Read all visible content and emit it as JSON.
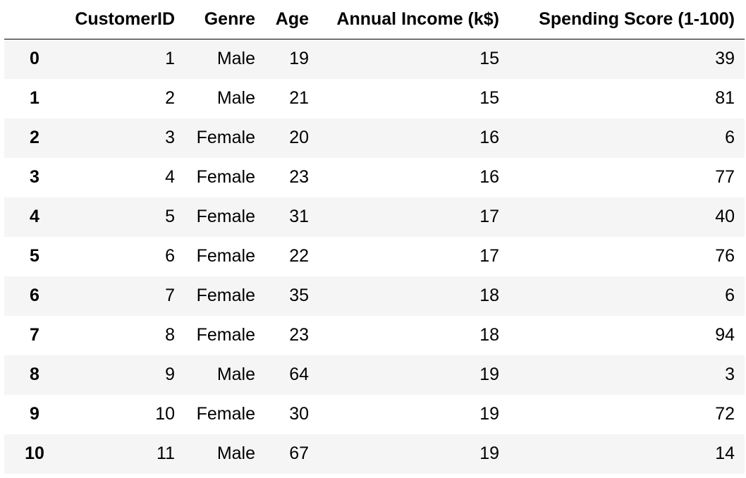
{
  "table": {
    "columns": [
      "",
      "CustomerID",
      "Genre",
      "Age",
      "Annual Income (k$)",
      "Spending Score (1-100)"
    ],
    "rows": [
      {
        "index": "0",
        "cells": [
          "1",
          "Male",
          "19",
          "15",
          "39"
        ]
      },
      {
        "index": "1",
        "cells": [
          "2",
          "Male",
          "21",
          "15",
          "81"
        ]
      },
      {
        "index": "2",
        "cells": [
          "3",
          "Female",
          "20",
          "16",
          "6"
        ]
      },
      {
        "index": "3",
        "cells": [
          "4",
          "Female",
          "23",
          "16",
          "77"
        ]
      },
      {
        "index": "4",
        "cells": [
          "5",
          "Female",
          "31",
          "17",
          "40"
        ]
      },
      {
        "index": "5",
        "cells": [
          "6",
          "Female",
          "22",
          "17",
          "76"
        ]
      },
      {
        "index": "6",
        "cells": [
          "7",
          "Female",
          "35",
          "18",
          "6"
        ]
      },
      {
        "index": "7",
        "cells": [
          "8",
          "Female",
          "23",
          "18",
          "94"
        ]
      },
      {
        "index": "8",
        "cells": [
          "9",
          "Male",
          "64",
          "19",
          "3"
        ]
      },
      {
        "index": "9",
        "cells": [
          "10",
          "Female",
          "30",
          "19",
          "72"
        ]
      },
      {
        "index": "10",
        "cells": [
          "11",
          "Male",
          "67",
          "19",
          "14"
        ]
      }
    ]
  },
  "colors": {
    "stripe": "#f5f5f5",
    "background": "#ffffff",
    "header_rule": "#000000",
    "text": "#000000"
  }
}
